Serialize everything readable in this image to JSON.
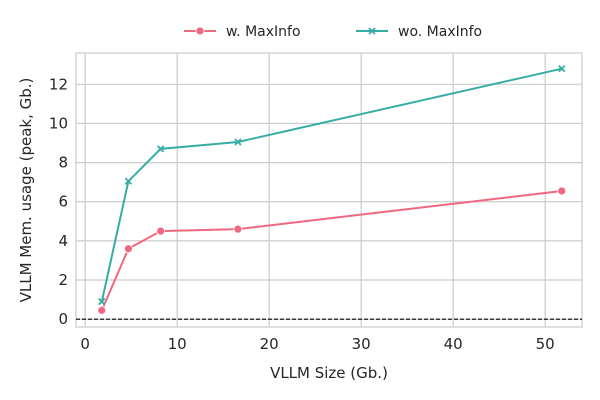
{
  "chart_data": {
    "type": "line",
    "title": "",
    "xlabel": "VLLM Size (Gb.)",
    "ylabel": "VLLM Mem. usage (peak, Gb.)",
    "xlim": [
      -1,
      54
    ],
    "ylim": [
      -0.4,
      13.6
    ],
    "xticks": [
      0,
      10,
      20,
      30,
      40,
      50
    ],
    "yticks": [
      0,
      2,
      4,
      6,
      8,
      10,
      12
    ],
    "grid": true,
    "legend_position": "top-center",
    "reference_line": {
      "y": 0,
      "style": "dashed",
      "color": "#000000"
    },
    "series": [
      {
        "name": "w. MaxInfo",
        "color": "#f0687f",
        "marker": "circle",
        "x": [
          1.8,
          4.7,
          8.2,
          16.6,
          51.8
        ],
        "y": [
          0.45,
          3.6,
          4.5,
          4.6,
          6.55
        ]
      },
      {
        "name": "wo. MaxInfo",
        "color": "#36ada4",
        "marker": "x",
        "x": [
          1.8,
          4.7,
          8.2,
          16.6,
          51.8
        ],
        "y": [
          0.9,
          7.05,
          8.7,
          9.05,
          12.8
        ]
      }
    ]
  }
}
